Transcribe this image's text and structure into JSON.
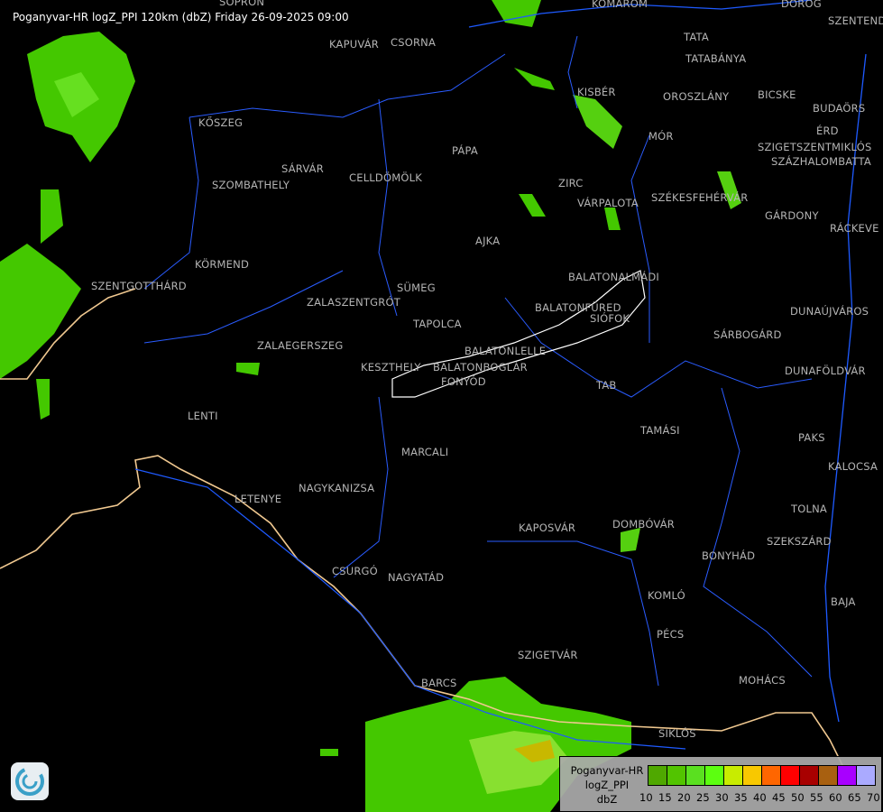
{
  "title": "Poganyvar-HR logZ_PPI 120km (dbZ) Friday 26-09-2025 09:00",
  "cities": [
    "SOPRON",
    "KOMÁROM",
    "DOROG",
    "SZENTENDRE",
    "KAPUVÁR",
    "CSORNA",
    "TATA",
    "TATABÁNYA",
    "KISBÉR",
    "OROSZLÁNY",
    "BICSKE",
    "BUDAÖRS",
    "KŐSZEG",
    "MÓR",
    "ÉRD",
    "SZIGETSZENTMIKLÓS",
    "SZÁZHALOMBATTA",
    "PÁPA",
    "SZOMBATHELY",
    "SÁRVÁR",
    "CELLDÖMÖLK",
    "ZIRC",
    "VÁRPALOTA",
    "SZÉKESFEHÉRVÁR",
    "GÁRDONY",
    "RÁCKEVE",
    "AJKA",
    "KÖRMEND",
    "BALATONALMÁDI",
    "SZENTGOTTHÁRD",
    "SÜMEG",
    "ZALASZENTGRÓT",
    "BALATONFÜRED",
    "SIÓFOK",
    "DUNAÚJVÁROS",
    "TAPOLCA",
    "SÁRBOGÁRD",
    "ZALAEGERSZEG",
    "BALATONLELLE",
    "KESZTHELY",
    "BALATONBOGLÁR",
    "DUNAFÖLDVÁR",
    "FONYÓD",
    "TAB",
    "LENTI",
    "TAMÁSI",
    "PAKS",
    "MARCALI",
    "KALOCSA",
    "NAGYKANIZSA",
    "LETENYE",
    "TOLNA",
    "KAPOSVÁR",
    "DOMBÓVÁR",
    "SZEKSZÁRD",
    "BONYHÁD",
    "CSURGÓ",
    "NAGYATÁD",
    "KOMLÓ",
    "BAJA",
    "PÉCS",
    "SZIGETVÁR",
    "BARCS",
    "MOHÁCS",
    "SIKLÓS"
  ],
  "legend": {
    "lines": [
      "Poganyvar-HR",
      "logZ_PPI",
      "dbZ"
    ],
    "ticks": [
      "10",
      "15",
      "20",
      "25",
      "30",
      "35",
      "40",
      "45",
      "50",
      "55",
      "60",
      "65",
      "70"
    ],
    "colors": [
      "#4fa800",
      "#52c400",
      "#5ae020",
      "#5cff10",
      "#c8ec00",
      "#f8c800",
      "#ff6600",
      "#ff0000",
      "#a80000",
      "#a86010",
      "#a800ff",
      "#aaaaff"
    ]
  },
  "colors": {
    "border": "#f0c890",
    "river": "#1e5aff",
    "county": "#2a5cff",
    "city_outline": "#ffffff",
    "label": "#b4b4b4"
  },
  "logo_icon": "radar-service-logo-icon"
}
